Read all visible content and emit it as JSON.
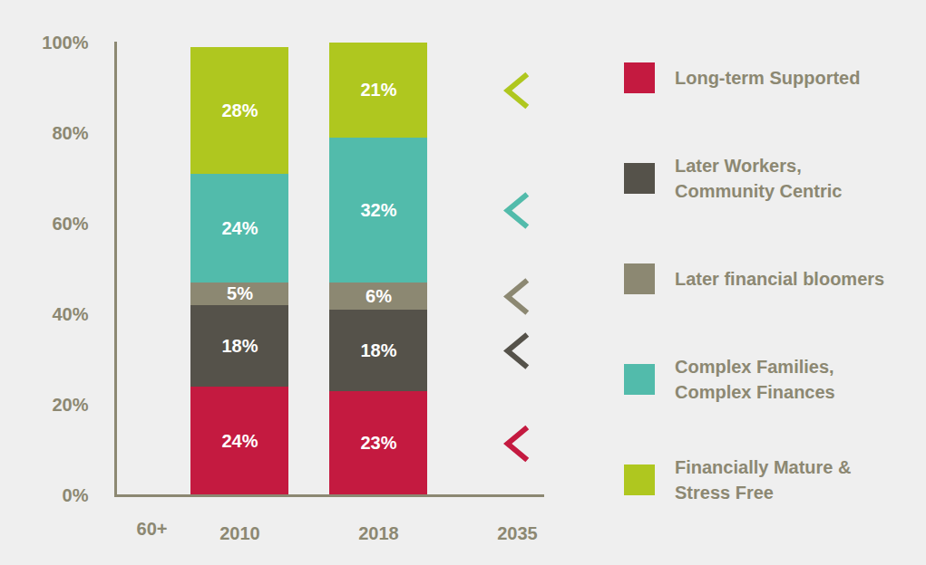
{
  "chart_data": {
    "type": "bar",
    "stacked": true,
    "data_labels": true,
    "legend": "right",
    "xlabel": "60+",
    "categories": [
      "2010",
      "2018",
      "2035"
    ],
    "series": [
      {
        "name": "Long-term Supported",
        "color": "#c41a40",
        "values": [
          24,
          23,
          null
        ],
        "value_labels": [
          "24%",
          "23%",
          null
        ]
      },
      {
        "name": "Later Workers, Community Centric",
        "color": "#55524a",
        "values": [
          18,
          18,
          null
        ],
        "value_labels": [
          "18%",
          "18%",
          null
        ]
      },
      {
        "name": "Later financial bloomers",
        "color": "#8c8872",
        "values": [
          5,
          6,
          null
        ],
        "value_labels": [
          "5%",
          "6%",
          null
        ]
      },
      {
        "name": "Complex Families, Complex Finances",
        "color": "#52bbab",
        "values": [
          24,
          32,
          null
        ],
        "value_labels": [
          "24%",
          "32%",
          null
        ]
      },
      {
        "name": "Financially Mature & Stress Free",
        "color": "#afc71f",
        "values": [
          28,
          21,
          null
        ],
        "value_labels": [
          "28%",
          "21%",
          null
        ]
      }
    ],
    "ylim": [
      0,
      100
    ],
    "yticks": [
      {
        "value": 0,
        "label": "0%"
      },
      {
        "value": 20,
        "label": "20%"
      },
      {
        "value": 40,
        "label": "40%"
      },
      {
        "value": 60,
        "label": "60%"
      },
      {
        "value": 80,
        "label": "80%"
      },
      {
        "value": 100,
        "label": "100%"
      }
    ]
  }
}
